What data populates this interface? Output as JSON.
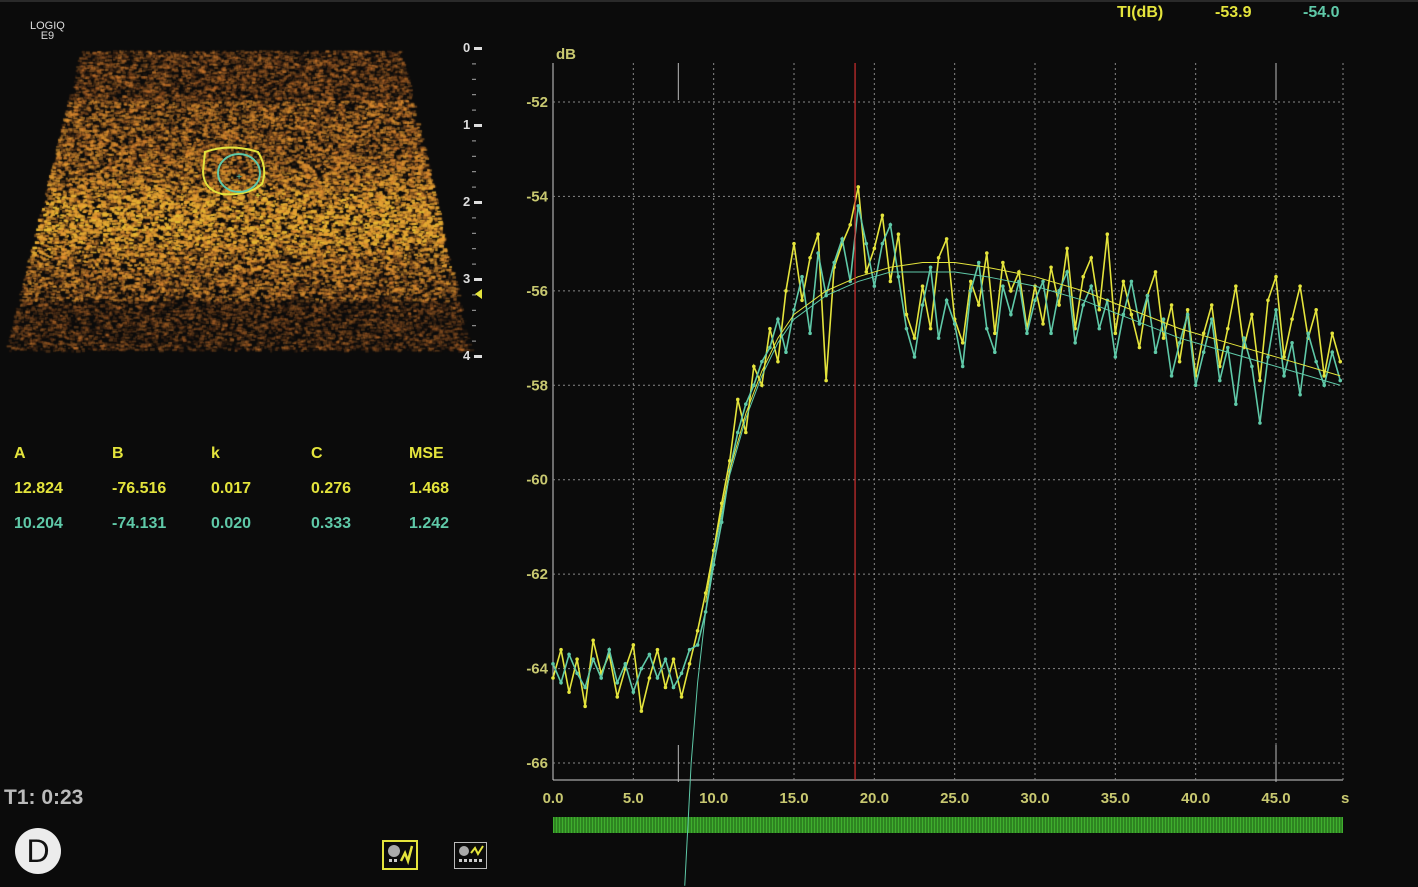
{
  "device": {
    "logo_line1": "LOGIQ",
    "logo_line2": "E9"
  },
  "depth_scale": [
    "0",
    "1",
    "2",
    "3",
    "4"
  ],
  "params": {
    "headers": [
      "A",
      "B",
      "k",
      "C",
      "MSE"
    ],
    "rows": [
      [
        "12.824",
        "-76.516",
        "0.017",
        "0.276",
        "1.468"
      ],
      [
        "10.204",
        "-74.131",
        "0.020",
        "0.333",
        "1.242"
      ]
    ]
  },
  "timer": "T1: 0:23",
  "panel_badge": "D",
  "buttons": [
    {
      "icon": "curve-fit-icon",
      "active": true
    },
    {
      "icon": "curve-table-icon",
      "active": false
    }
  ],
  "ti_readout": {
    "label": "TI(dB)",
    "values": [
      "-53.9",
      "-54.0"
    ]
  },
  "colors": {
    "roi1": "#e4e43c",
    "roi2": "#5fc9a8",
    "cursor": "#d03030",
    "timeline": "#3fae2e"
  },
  "chart_data": {
    "type": "line",
    "ylabel": "dB",
    "xlabel": "s",
    "xlim": [
      0,
      49.2
    ],
    "ylim": [
      -66.3,
      -51.2
    ],
    "x_ticks": [
      "0.0",
      "5.0",
      "10.0",
      "15.0",
      "20.0",
      "25.0",
      "30.0",
      "35.0",
      "40.0",
      "45.0"
    ],
    "y_ticks": [
      "-52",
      "-54",
      "-56",
      "-58",
      "-60",
      "-62",
      "-64",
      "-66"
    ],
    "grid": true,
    "cursor_x": 18.8,
    "markers_x": [
      7.8,
      45.0
    ],
    "series": [
      {
        "color": "#e4e43c",
        "x_start": 0,
        "x_step": 0.5,
        "values": [
          -64.2,
          -63.6,
          -64.5,
          -63.8,
          -64.8,
          -63.4,
          -64.1,
          -63.7,
          -64.6,
          -64.0,
          -63.5,
          -64.9,
          -64.2,
          -63.6,
          -64.4,
          -63.8,
          -64.6,
          -63.9,
          -63.2,
          -62.4,
          -61.5,
          -60.5,
          -59.6,
          -58.3,
          -59.0,
          -57.6,
          -58.0,
          -56.8,
          -57.5,
          -56.0,
          -55.0,
          -56.2,
          -55.3,
          -54.8,
          -57.9,
          -55.5,
          -55.0,
          -54.6,
          -53.8,
          -55.6,
          -55.1,
          -54.4,
          -55.8,
          -54.8,
          -56.5,
          -57.0,
          -55.9,
          -56.8,
          -55.3,
          -54.9,
          -56.6,
          -57.1,
          -55.8,
          -56.3,
          -55.2,
          -56.9,
          -55.4,
          -56.0,
          -55.6,
          -56.8,
          -55.9,
          -56.7,
          -55.5,
          -56.3,
          -55.1,
          -56.8,
          -55.7,
          -55.3,
          -56.4,
          -54.8,
          -56.9,
          -55.8,
          -56.5,
          -57.2,
          -56.1,
          -55.6,
          -57.0,
          -56.3,
          -57.5,
          -56.4,
          -57.8,
          -56.9,
          -56.3,
          -57.6,
          -56.8,
          -55.9,
          -57.2,
          -56.5,
          -57.9,
          -56.2,
          -55.7,
          -57.4,
          -56.6,
          -55.9,
          -57.0,
          -56.4,
          -57.8,
          -56.9,
          -57.5
        ]
      },
      {
        "color": "#5fc9a8",
        "x_start": 0,
        "x_step": 0.5,
        "values": [
          -63.9,
          -64.3,
          -63.7,
          -64.1,
          -64.4,
          -63.8,
          -64.2,
          -63.6,
          -64.3,
          -63.9,
          -64.5,
          -64.0,
          -63.7,
          -64.2,
          -63.8,
          -64.4,
          -64.1,
          -63.6,
          -63.5,
          -62.8,
          -61.8,
          -60.9,
          -59.8,
          -59.0,
          -58.4,
          -58.0,
          -57.5,
          -57.2,
          -56.6,
          -57.3,
          -56.4,
          -55.7,
          -56.9,
          -55.2,
          -56.1,
          -55.4,
          -54.9,
          -55.8,
          -54.2,
          -55.0,
          -55.9,
          -55.0,
          -54.6,
          -55.7,
          -56.8,
          -57.4,
          -56.3,
          -55.5,
          -57.0,
          -56.2,
          -56.7,
          -57.6,
          -56.0,
          -55.4,
          -56.8,
          -57.3,
          -55.9,
          -56.5,
          -55.8,
          -56.9,
          -56.2,
          -55.8,
          -56.9,
          -56.0,
          -55.6,
          -57.1,
          -56.3,
          -55.9,
          -56.8,
          -56.2,
          -57.4,
          -56.5,
          -55.8,
          -56.7,
          -56.1,
          -57.3,
          -56.6,
          -57.8,
          -57.1,
          -56.5,
          -58.0,
          -57.3,
          -56.6,
          -57.9,
          -57.2,
          -58.4,
          -57.0,
          -57.6,
          -58.8,
          -57.4,
          -56.4,
          -57.8,
          -57.1,
          -58.2,
          -56.9,
          -57.5,
          -58.0,
          -57.3,
          -57.9
        ]
      }
    ],
    "fits": [
      {
        "color": "#e4e43c",
        "x": [
          9.5,
          10,
          11,
          12,
          13,
          14,
          15,
          17,
          19,
          21,
          23,
          25,
          27,
          30,
          33,
          36,
          39,
          42,
          45,
          49
        ],
        "y": [
          -62.6,
          -61.5,
          -59.8,
          -58.6,
          -57.7,
          -57.0,
          -56.5,
          -56.0,
          -55.7,
          -55.5,
          -55.4,
          -55.4,
          -55.5,
          -55.7,
          -56.0,
          -56.4,
          -56.8,
          -57.1,
          -57.4,
          -57.8
        ]
      },
      {
        "color": "#5fc9a8",
        "x": [
          8.2,
          8.6,
          9,
          9.5,
          10,
          11,
          12,
          13,
          14,
          15,
          17,
          19,
          21,
          23,
          25,
          27,
          30,
          33,
          36,
          39,
          42,
          45,
          49
        ],
        "y": [
          -68.6,
          -66,
          -64.3,
          -62.8,
          -61.6,
          -59.9,
          -58.7,
          -57.8,
          -57.1,
          -56.6,
          -56.1,
          -55.8,
          -55.6,
          -55.6,
          -55.6,
          -55.7,
          -55.9,
          -56.2,
          -56.6,
          -57.0,
          -57.3,
          -57.6,
          -58.0
        ]
      }
    ]
  }
}
